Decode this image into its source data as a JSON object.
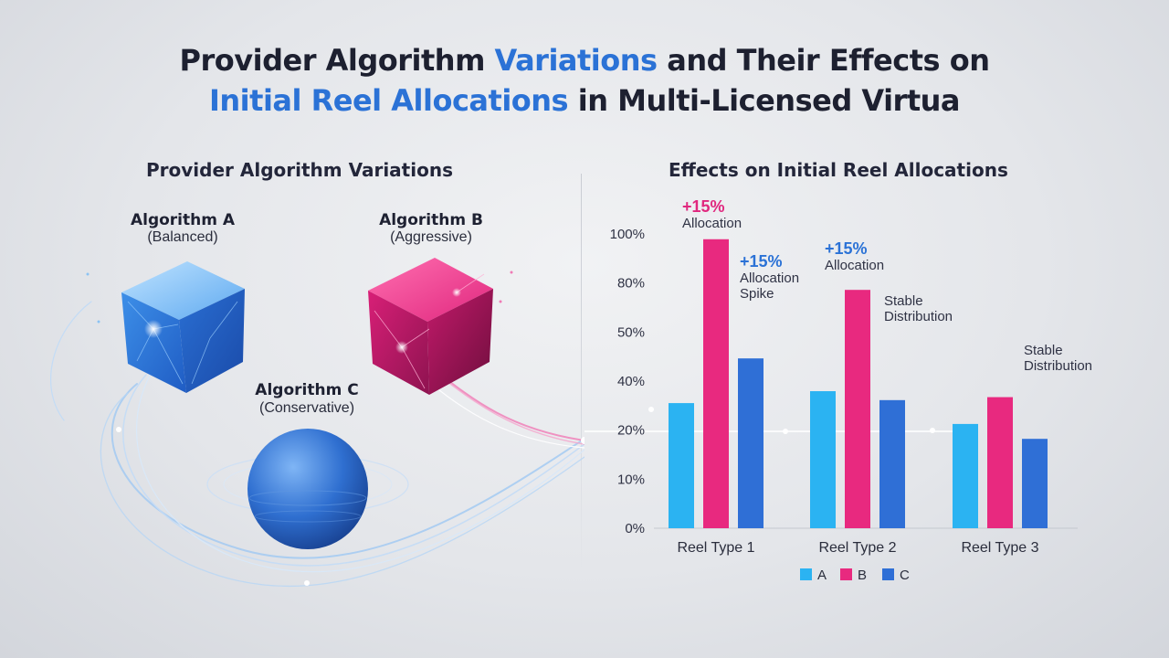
{
  "title": {
    "line1_pre": "Provider Algorithm ",
    "line1_hl": "Variations",
    "line1_post": " and Their Effects on",
    "line2_hl": "Initial Reel Allocations",
    "line2_post": " in Multi-Licensed Virtua"
  },
  "left": {
    "heading": "Provider Algorithm Variations",
    "algorithms": [
      {
        "name": "Algorithm A",
        "desc": "(Balanced)",
        "shape": "cube",
        "color": "#3f8fe6"
      },
      {
        "name": "Algorithm B",
        "desc": "(Aggressive)",
        "shape": "cube",
        "color": "#e0277e"
      },
      {
        "name": "Algorithm C",
        "desc": "(Conservative)",
        "shape": "sphere",
        "color": "#2f6fd0"
      }
    ]
  },
  "right": {
    "heading": "Effects on Initial Reel Allocations",
    "annotations": [
      {
        "pct": "+15%",
        "text": "Allocation",
        "style": "pink"
      },
      {
        "pct": "+15%",
        "text": "Allocation Spike",
        "style": "blue"
      },
      {
        "pct": "+15%",
        "text": "Allocation",
        "style": "blue"
      },
      {
        "pct": "",
        "text": "Stable Distribution",
        "style": "plain"
      },
      {
        "pct": "",
        "text": "Stable Distribution",
        "style": "plain"
      }
    ]
  },
  "chart_data": {
    "type": "bar",
    "categories": [
      "Reel Type 1",
      "Reel Type 2",
      "Reel Type 3"
    ],
    "series": [
      {
        "name": "A",
        "values": [
          42,
          46,
          35
        ],
        "color": "#2bb3f2"
      },
      {
        "name": "B",
        "values": [
          97,
          80,
          44
        ],
        "color": "#e8297f"
      },
      {
        "name": "C",
        "values": [
          57,
          43,
          30
        ],
        "color": "#2f6fd6"
      }
    ],
    "ytick_labels": [
      "0%",
      "10%",
      "20%",
      "40%",
      "50%",
      "80%",
      "100%"
    ],
    "ylim": [
      0,
      100
    ],
    "grid": false,
    "legend_position": "bottom"
  }
}
